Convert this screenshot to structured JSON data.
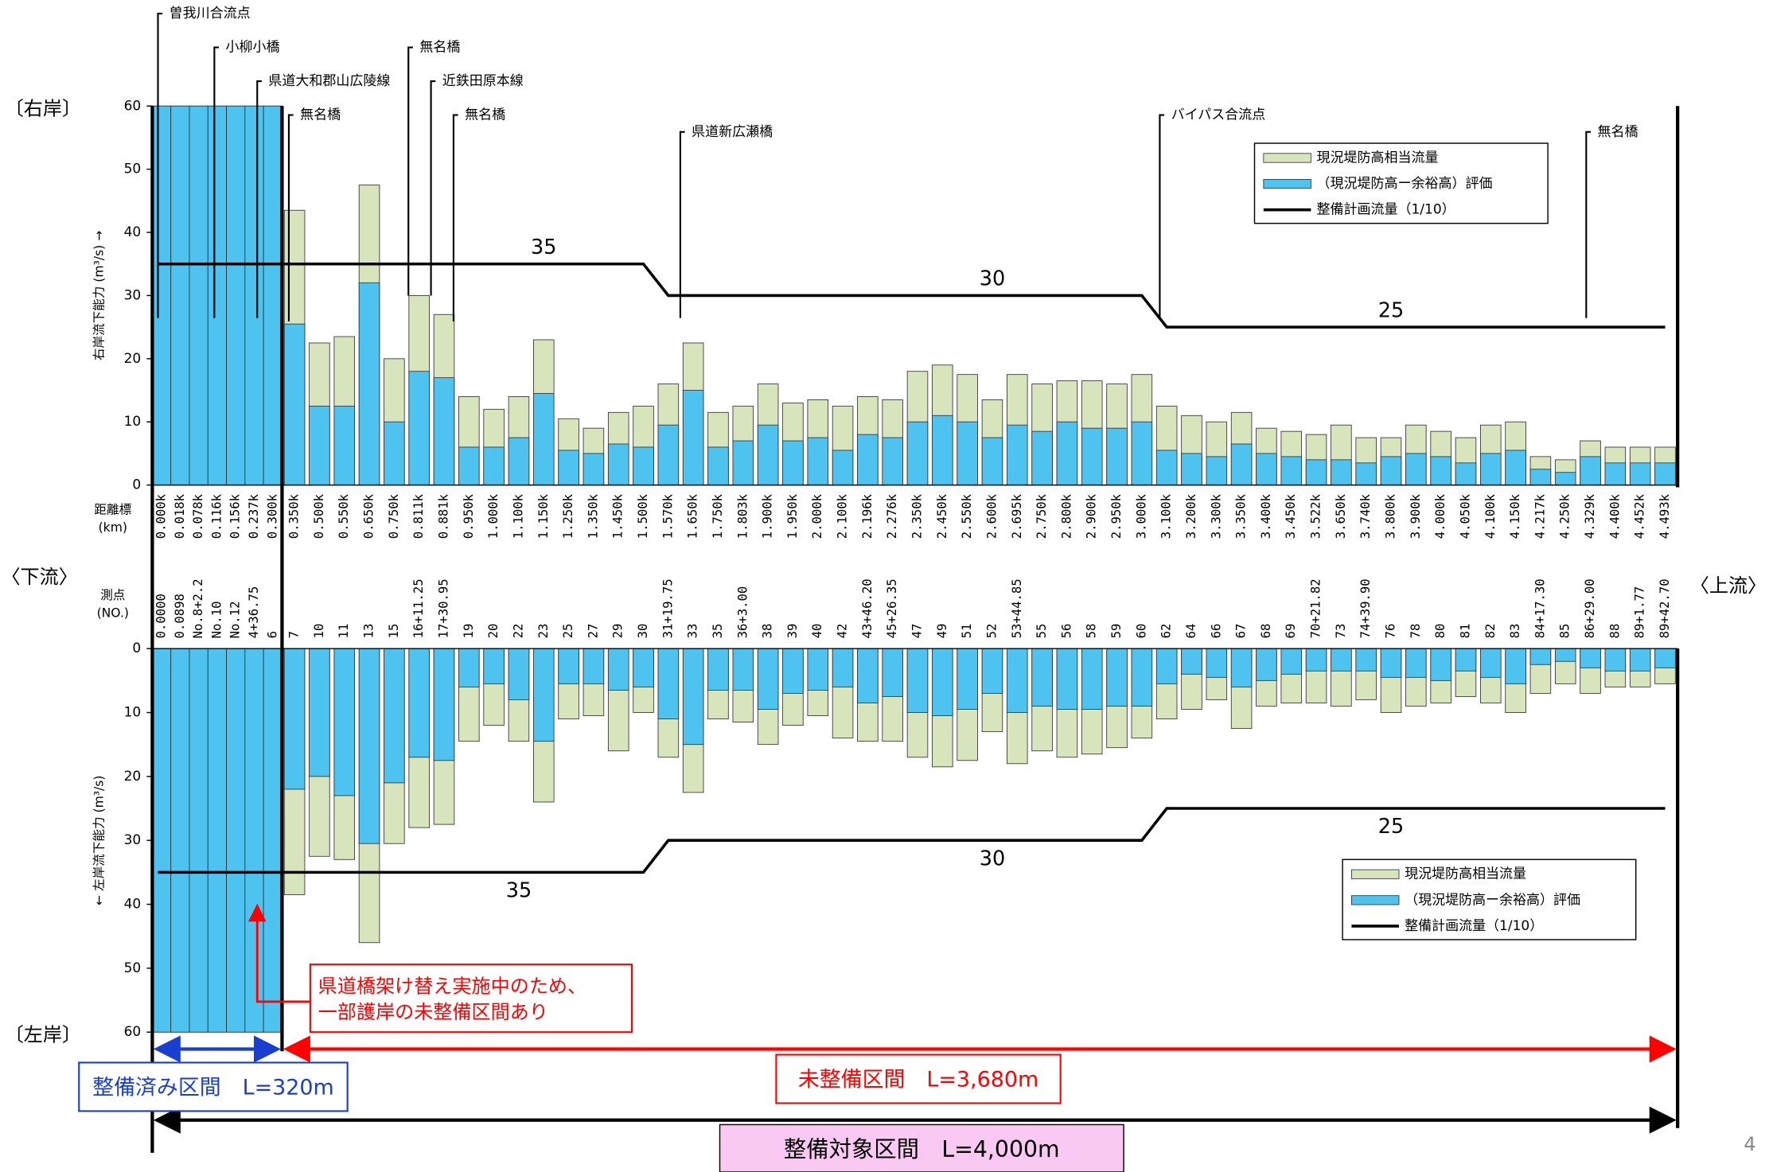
{
  "labels": {
    "right_bank": "〔右岸〕",
    "left_bank": "〔左岸〕",
    "downstream": "〈下流〉",
    "upstream": "〈上流〉",
    "callout": [
      "県道橋架け替え実施中のため、",
      "一部護岸の未整備区間あり"
    ],
    "done_section": "整備済み区間　L=320m",
    "todo_section": "未整備区間　L=3,680m",
    "target_section": "整備対象区間　L=4,000m",
    "page_number": "4"
  },
  "chart_data": [
    {
      "type": "bar",
      "y_label": "右岸流下能力 (m³/s) →",
      "x_label": [
        "距離標",
        "(km)"
      ],
      "categories": [
        "0.000k",
        "0.018k",
        "0.078k",
        "0.116k",
        "0.156k",
        "0.237k",
        "0.300k",
        "0.350k",
        "0.500k",
        "0.550k",
        "0.650k",
        "0.750k",
        "0.811k",
        "0.881k",
        "0.950k",
        "1.000k",
        "1.100k",
        "1.150k",
        "1.250k",
        "1.350k",
        "1.450k",
        "1.500k",
        "1.570k",
        "1.650k",
        "1.750k",
        "1.803k",
        "1.900k",
        "1.950k",
        "2.000k",
        "2.100k",
        "2.196k",
        "2.276k",
        "2.350k",
        "2.450k",
        "2.550k",
        "2.600k",
        "2.695k",
        "2.750k",
        "2.800k",
        "2.900k",
        "2.950k",
        "3.000k",
        "3.100k",
        "3.200k",
        "3.300k",
        "3.350k",
        "3.400k",
        "3.450k",
        "3.522k",
        "3.650k",
        "3.740k",
        "3.800k",
        "3.900k",
        "4.000k",
        "4.050k",
        "4.100k",
        "4.150k",
        "4.217k",
        "4.250k",
        "4.329k",
        "4.400k",
        "4.452k",
        "4.493k"
      ],
      "ylim": [
        0,
        60
      ],
      "yticks": [
        0,
        10,
        20,
        30,
        40,
        50,
        60
      ],
      "inverted": false,
      "series": [
        {
          "name": "現況堤防高相当流量",
          "color": "#d8e4bc",
          "values": [
            60,
            60,
            60,
            60,
            60,
            60,
            60,
            43.5,
            22.5,
            23.5,
            47.5,
            20,
            30,
            27,
            14,
            12,
            14,
            23,
            10.5,
            9,
            11.5,
            12.5,
            16,
            22.5,
            11.5,
            12.5,
            16,
            13,
            13.5,
            12.5,
            14,
            13.5,
            18,
            19,
            17.5,
            13.5,
            17.5,
            16,
            16.5,
            16.5,
            16,
            17.5,
            12.5,
            11,
            10,
            11.5,
            9,
            8.5,
            8,
            9.5,
            7.5,
            7.5,
            9.5,
            8.5,
            7.5,
            9.5,
            10,
            4.5,
            4,
            7,
            6,
            6,
            6
          ]
        },
        {
          "name": "（現況堤防高ー余裕高）評価",
          "color": "#4fc3f0",
          "values": [
            60,
            60,
            60,
            60,
            60,
            60,
            60,
            25.5,
            12.5,
            12.5,
            32,
            10,
            18,
            17,
            6,
            6,
            7.5,
            14.5,
            5.5,
            5,
            6.5,
            6,
            9.5,
            15,
            6,
            7,
            9.5,
            7,
            7.5,
            5.5,
            8,
            7.5,
            10,
            11,
            10,
            7.5,
            9.5,
            8.5,
            10,
            9,
            9,
            10,
            5.5,
            5,
            4.5,
            6.5,
            5,
            4.5,
            4,
            4,
            3.5,
            4.5,
            5,
            4.5,
            3.5,
            5,
            5.5,
            2.5,
            2,
            4.5,
            3.5,
            3.5,
            3.5
          ]
        },
        {
          "name": "整備計画流量（1/10）",
          "color": "#000000",
          "type": "line",
          "values": [
            35,
            35,
            35,
            35,
            35,
            35,
            35,
            35,
            35,
            35,
            35,
            35,
            35,
            35,
            35,
            35,
            35,
            35,
            35,
            35,
            35,
            35,
            30,
            30,
            30,
            30,
            30,
            30,
            30,
            30,
            30,
            30,
            30,
            30,
            30,
            30,
            30,
            30,
            30,
            30,
            30,
            30,
            25,
            25,
            25,
            25,
            25,
            25,
            25,
            25,
            25,
            25,
            25,
            25,
            25,
            25,
            25,
            25,
            25,
            25,
            25,
            25,
            25
          ]
        }
      ],
      "annotations": [
        {
          "text": "曽我川合流点"
        },
        {
          "text": "小柳小橋"
        },
        {
          "text": "県道大和郡山広陵線"
        },
        {
          "text": "無名橋"
        },
        {
          "text": "近鉄田原本線"
        },
        {
          "text": "無名橋"
        },
        {
          "text": "無名橋"
        },
        {
          "text": "県道新広瀬橋"
        },
        {
          "text": "バイパス合流点"
        },
        {
          "text": "無名橋"
        }
      ]
    },
    {
      "type": "bar",
      "y_label": "← 左岸流下能力 (m³/s)",
      "x_label": [
        "測点",
        "(NO.)"
      ],
      "categories": [
        "0.0000",
        "0.0898",
        "No.8+2.2",
        "No.10",
        "No.12",
        "4+36.75",
        "6",
        "7",
        "10",
        "11",
        "13",
        "15",
        "16+11.25",
        "17+30.95",
        "19",
        "20",
        "22",
        "23",
        "25",
        "27",
        "29",
        "30",
        "31+19.75",
        "33",
        "35",
        "36+3.00",
        "38",
        "39",
        "40",
        "42",
        "43+46.20",
        "45+26.35",
        "47",
        "49",
        "51",
        "52",
        "53+44.85",
        "55",
        "56",
        "58",
        "59",
        "60",
        "62",
        "64",
        "66",
        "67",
        "68",
        "69",
        "70+21.82",
        "73",
        "74+39.90",
        "76",
        "78",
        "80",
        "81",
        "82",
        "83",
        "84+17.30",
        "85",
        "86+29.00",
        "88",
        "89+1.77",
        "89+42.70"
      ],
      "ylim": [
        0,
        60
      ],
      "yticks": [
        0,
        10,
        20,
        30,
        40,
        50,
        60
      ],
      "inverted": true,
      "series": [
        {
          "name": "現況堤防高相当流量",
          "color": "#d8e4bc",
          "values": [
            60,
            60,
            60,
            60,
            60,
            60,
            60,
            38.5,
            32.5,
            33,
            46,
            30.5,
            28,
            27.5,
            14.5,
            12,
            14.5,
            24,
            11,
            10.5,
            16,
            10,
            17,
            22.5,
            11,
            11.5,
            15,
            12,
            10.5,
            14,
            14.5,
            14.5,
            17,
            18.5,
            17.5,
            13,
            18,
            16,
            17,
            16.5,
            15.5,
            14,
            11,
            9.5,
            8,
            12.5,
            9,
            8.5,
            8.5,
            9,
            8,
            10,
            9,
            8.5,
            7.5,
            8.5,
            10,
            7,
            5.5,
            7,
            6,
            6,
            5.5
          ]
        },
        {
          "name": "（現況堤防高ー余裕高）評価",
          "color": "#4fc3f0",
          "values": [
            60,
            60,
            60,
            60,
            60,
            60,
            60,
            22,
            20,
            23,
            30.5,
            21,
            17,
            17.5,
            6,
            5.5,
            8,
            14.5,
            5.5,
            5.5,
            6.5,
            6,
            11,
            15,
            6.5,
            6.5,
            9.5,
            7,
            6.5,
            6,
            8.5,
            7.5,
            10,
            10.5,
            9.5,
            7,
            10,
            9,
            9.5,
            9.5,
            9,
            9,
            5.5,
            4,
            4.5,
            6,
            5,
            4,
            3.5,
            3.5,
            3.5,
            4.5,
            4.5,
            5,
            3.5,
            4.5,
            5.5,
            2.5,
            2,
            3,
            3.5,
            3.5,
            3
          ]
        },
        {
          "name": "整備計画流量（1/10）",
          "color": "#000000",
          "type": "line",
          "values": [
            35,
            35,
            35,
            35,
            35,
            35,
            35,
            35,
            35,
            35,
            35,
            35,
            35,
            35,
            35,
            35,
            35,
            35,
            35,
            35,
            35,
            35,
            30,
            30,
            30,
            30,
            30,
            30,
            30,
            30,
            30,
            30,
            30,
            30,
            30,
            30,
            30,
            30,
            30,
            30,
            30,
            30,
            25,
            25,
            25,
            25,
            25,
            25,
            25,
            25,
            25,
            25,
            25,
            25,
            25,
            25,
            25,
            25,
            25,
            25,
            25,
            25,
            25
          ]
        }
      ]
    }
  ]
}
